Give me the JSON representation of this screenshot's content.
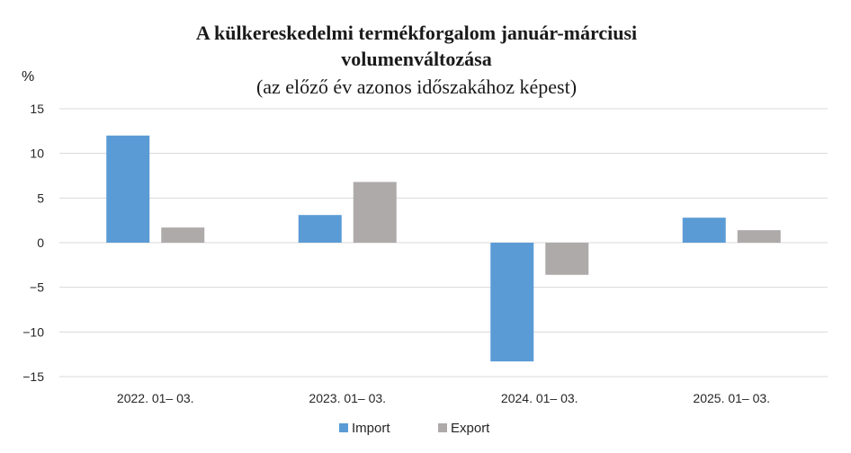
{
  "chart_data": {
    "type": "bar",
    "title_line1": "A külkereskedelmi termékforgalom január-márciusi",
    "title_line2": "volumenváltozása",
    "subtitle": "(az előző év azonos időszakához képest)",
    "ylabel": "%",
    "ylim": [
      -15,
      15
    ],
    "yticks": [
      15,
      10,
      5,
      0,
      -5,
      -10,
      -15
    ],
    "ytick_labels": [
      "15",
      "10",
      "5",
      "0",
      "−5",
      "−10",
      "−15"
    ],
    "categories": [
      "2022. 01– 03.",
      "2023. 01– 03.",
      "2024. 01– 03.",
      "2025. 01– 03."
    ],
    "series": [
      {
        "name": "Import",
        "color": "#5b9bd5",
        "values": [
          12.0,
          3.1,
          -13.3,
          2.8
        ]
      },
      {
        "name": "Export",
        "color": "#aeaaaa",
        "values": [
          1.7,
          6.8,
          -3.6,
          1.4
        ]
      }
    ],
    "grid": true,
    "legend_position": "bottom-center"
  }
}
